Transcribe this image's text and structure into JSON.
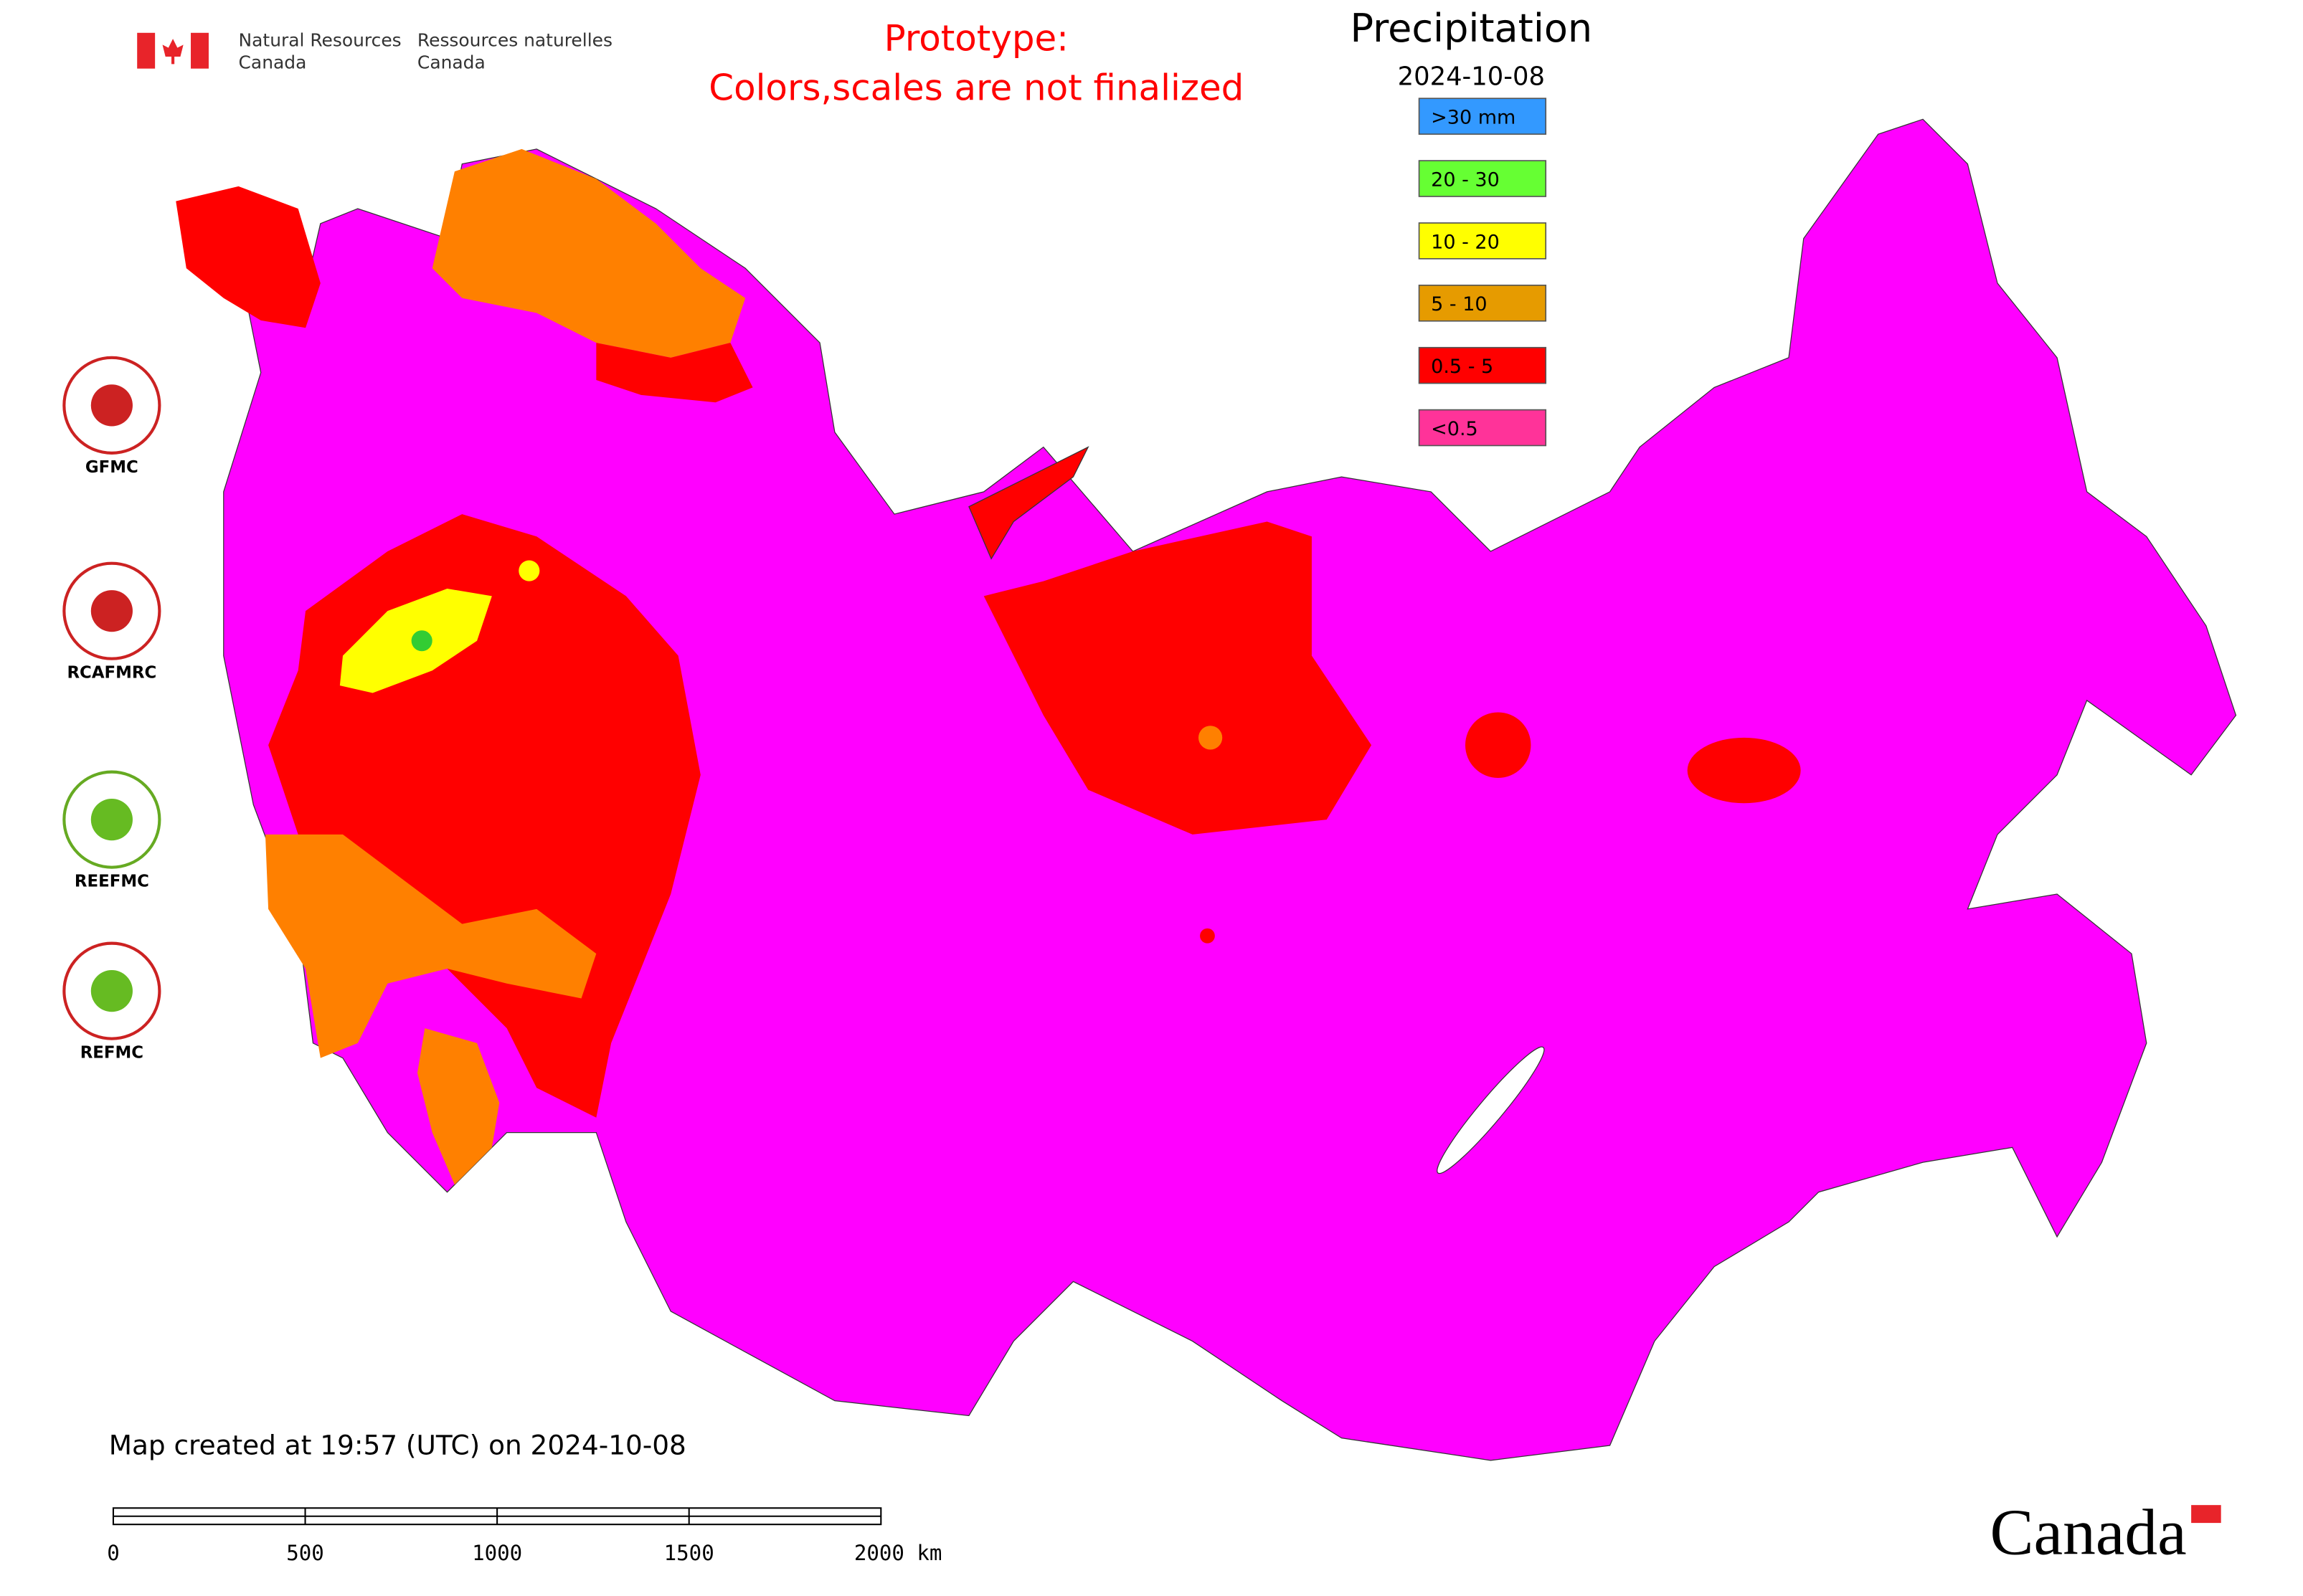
{
  "agency": {
    "en_line1": "Natural Resources",
    "en_line2": "Canada",
    "fr_line1": "Ressources naturelles",
    "fr_line2": "Canada"
  },
  "notice": {
    "line1": "Prototype:",
    "line2": "Colors,scales are not finalized"
  },
  "legend": {
    "title": "Precipitation",
    "date": "2024-10-08",
    "items": [
      {
        "label": ">30 mm",
        "color": "#3399ff"
      },
      {
        "label": "20 - 30",
        "color": "#66ff33"
      },
      {
        "label": "10 - 20",
        "color": "#ffff00"
      },
      {
        "label": "5 - 10",
        "color": "#e69b00"
      },
      {
        "label": "0.5 - 5",
        "color": "#ff0000"
      },
      {
        "label": "<0.5",
        "color": "#ff3399"
      }
    ]
  },
  "logos": [
    "GFMC",
    "RCAFMRC",
    "REEFMC",
    "REFMC"
  ],
  "footer": {
    "created": "Map created at 19:57 (UTC) on 2024-10-08",
    "scale_bar": [
      "0",
      "500",
      "1000",
      "1500",
      "2000 km"
    ],
    "wordmark": "Canada"
  }
}
